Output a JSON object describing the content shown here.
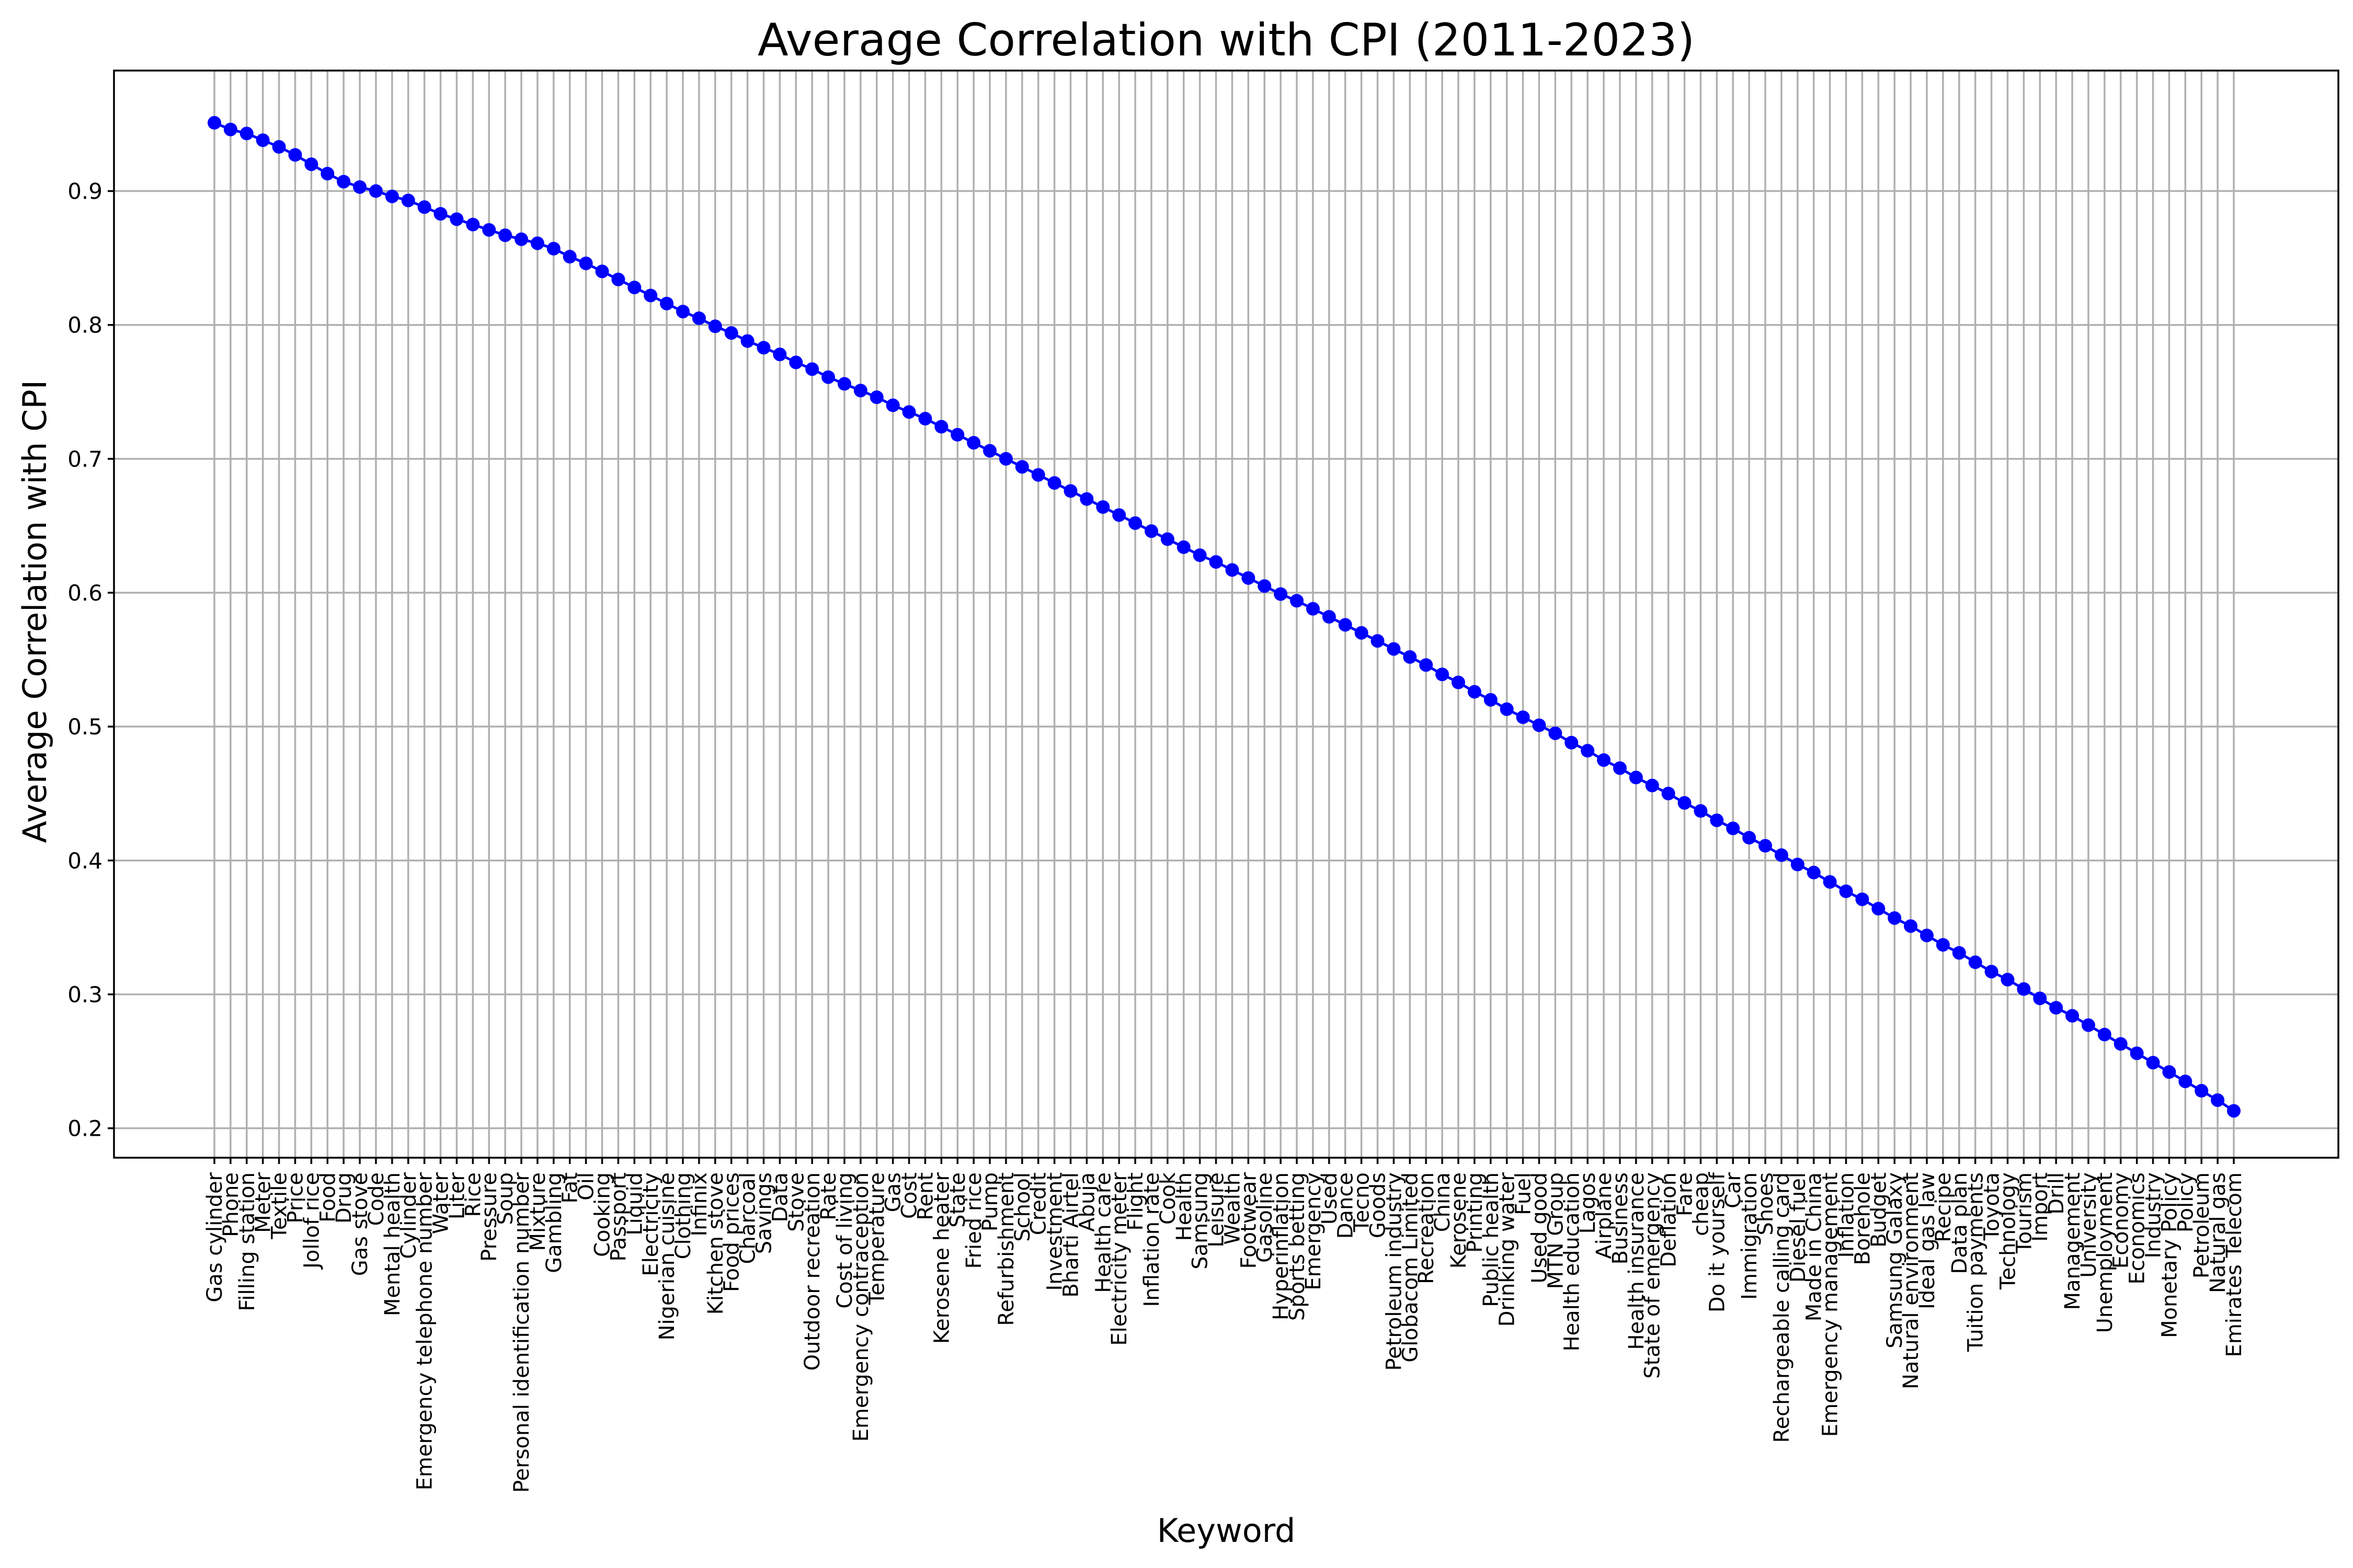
{
  "chart_data": {
    "type": "line",
    "title": "Average Correlation with CPI (2011-2023)",
    "xlabel": "Keyword",
    "ylabel": "Average Correlation with CPI",
    "ylim": [
      0.178,
      0.99
    ],
    "y_ticks": [
      "0.2",
      "0.3",
      "0.4",
      "0.5",
      "0.6",
      "0.7",
      "0.8",
      "0.9"
    ],
    "grid": true,
    "marker": "circle",
    "color": "#0000ff",
    "categories": [
      "Gas cylinder",
      "Phone",
      "Filling station",
      "Meter",
      "Textile",
      "Price",
      "Jollof rice",
      "Food",
      "Drug",
      "Gas stove",
      "Code",
      "Mental health",
      "Cylinder",
      "Emergency telephone number",
      "Water",
      "Liter",
      "Rice",
      "Pressure",
      "Soup",
      "Personal identification number",
      "Mixture",
      "Gambling",
      "Fat",
      "Oil",
      "Cooking",
      "Passport",
      "Liquid",
      "Electricity",
      "Nigerian cuisine",
      "Clothing",
      "Infinix",
      "Kitchen stove",
      "Food prices",
      "Charcoal",
      "Savings",
      "Data",
      "Stove",
      "Outdoor recreation",
      "Rate",
      "Cost of living",
      "Emergency contraception",
      "Temperature",
      "Gas",
      "Cost",
      "Rent",
      "Kerosene heater",
      "State",
      "Fried rice",
      "Pump",
      "Refurbishment",
      "School",
      "Credit",
      "Investment",
      "Bharti Airtel",
      "Abuja",
      "Health care",
      "Electricity meter",
      "Flight",
      "Inflation rate",
      "Cook",
      "Health",
      "Samsung",
      "Leisure",
      "Wealth",
      "Footwear",
      "Gasoline",
      "Hyperinflation",
      "Sports betting",
      "Emergency",
      "Used",
      "Dance",
      "Tecno",
      "Goods",
      "Petroleum industry",
      "Globacom Limited",
      "Recreation",
      "China",
      "Kerosene",
      "Printing",
      "Public health",
      "Drinking water",
      "Fuel",
      "Used good",
      "MTN Group",
      "Health education",
      "Lagos",
      "Airplane",
      "Business",
      "Health insurance",
      "State of emergency",
      "Deflation",
      "Fare",
      "cheap",
      "Do it yourself",
      "Car",
      "Immigration",
      "Shoes",
      "Rechargeable calling card",
      "Diesel fuel",
      "Made in China",
      "Emergency management",
      "Inflation",
      "Borehole",
      "Budget",
      "Samsung Galaxy",
      "Natural environment",
      "Ideal gas law",
      "Recipe",
      "Data plan",
      "Tuition payments",
      "Toyota",
      "Technology",
      "Tourism",
      "Import",
      "Drill",
      "Management",
      "University",
      "Unemployment",
      "Economy",
      "Economics",
      "Industry",
      "Monetary Policy",
      "Policy",
      "Petroleum",
      "Natural gas",
      "Emirates Telecom"
    ],
    "values": [
      0.951,
      0.946,
      0.943,
      0.938,
      0.933,
      0.927,
      0.92,
      0.913,
      0.907,
      0.903,
      0.9,
      0.896,
      0.893,
      0.888,
      0.883,
      0.879,
      0.875,
      0.871,
      0.867,
      0.864,
      0.861,
      0.857,
      0.851,
      0.846,
      0.84,
      0.834,
      0.828,
      0.822,
      0.816,
      0.81,
      0.805,
      0.799,
      0.794,
      0.788,
      0.783,
      0.778,
      0.772,
      0.767,
      0.761,
      0.756,
      0.751,
      0.746,
      0.74,
      0.735,
      0.73,
      0.724,
      0.718,
      0.712,
      0.706,
      0.7,
      0.694,
      0.688,
      0.682,
      0.676,
      0.67,
      0.664,
      0.658,
      0.652,
      0.646,
      0.64,
      0.634,
      0.628,
      0.623,
      0.617,
      0.611,
      0.605,
      0.599,
      0.594,
      0.588,
      0.582,
      0.576,
      0.57,
      0.564,
      0.558,
      0.552,
      0.546,
      0.539,
      0.533,
      0.526,
      0.52,
      0.513,
      0.507,
      0.501,
      0.495,
      0.488,
      0.482,
      0.475,
      0.469,
      0.462,
      0.456,
      0.45,
      0.443,
      0.437,
      0.43,
      0.424,
      0.417,
      0.411,
      0.404,
      0.397,
      0.391,
      0.384,
      0.377,
      0.371,
      0.364,
      0.357,
      0.351,
      0.344,
      0.337,
      0.331,
      0.324,
      0.317,
      0.311,
      0.304,
      0.297,
      0.29,
      0.284,
      0.277,
      0.27,
      0.263,
      0.256,
      0.249,
      0.242,
      0.235,
      0.228,
      0.221,
      0.213
    ]
  }
}
